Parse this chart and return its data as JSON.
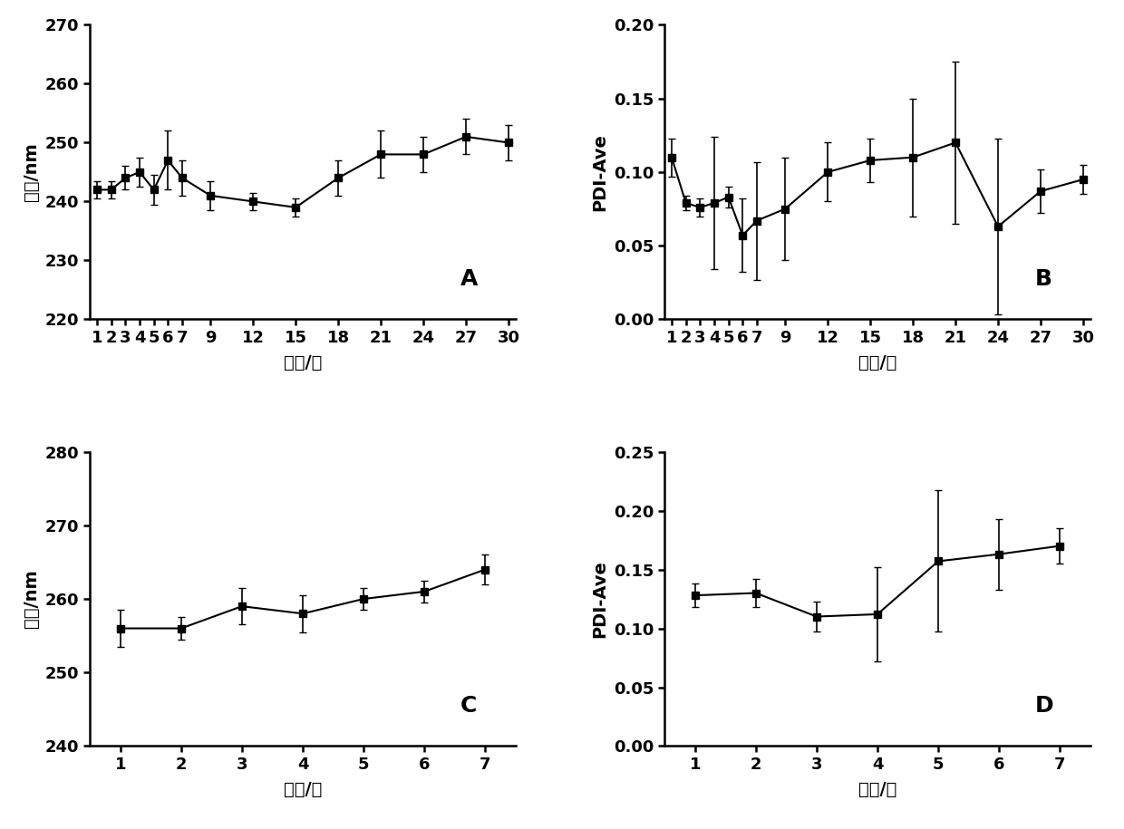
{
  "panel_A": {
    "x": [
      1,
      2,
      3,
      4,
      5,
      6,
      7,
      9,
      12,
      15,
      18,
      21,
      24,
      27,
      30
    ],
    "y": [
      242,
      242,
      244,
      245,
      242,
      247,
      244,
      241,
      240,
      239,
      244,
      248,
      248,
      251,
      250
    ],
    "yerr": [
      1.5,
      1.5,
      2,
      2.5,
      2.5,
      5,
      3,
      2.5,
      1.5,
      1.5,
      3,
      4,
      3,
      3,
      3
    ],
    "xlabel": "天数/天",
    "ylabel": "粒径/nm",
    "ylim": [
      220,
      270
    ],
    "yticks": [
      220,
      230,
      240,
      250,
      260,
      270
    ],
    "xticks": [
      1,
      2,
      3,
      4,
      5,
      6,
      7,
      9,
      12,
      15,
      18,
      21,
      24,
      27,
      30
    ],
    "label": "A"
  },
  "panel_B": {
    "x": [
      1,
      2,
      3,
      4,
      5,
      6,
      7,
      9,
      12,
      15,
      18,
      21,
      24,
      27,
      30
    ],
    "y": [
      0.11,
      0.079,
      0.076,
      0.079,
      0.083,
      0.057,
      0.067,
      0.075,
      0.1,
      0.108,
      0.11,
      0.12,
      0.063,
      0.087,
      0.095
    ],
    "yerr": [
      0.013,
      0.005,
      0.006,
      0.045,
      0.007,
      0.025,
      0.04,
      0.035,
      0.02,
      0.015,
      0.04,
      0.055,
      0.06,
      0.015,
      0.01
    ],
    "xlabel": "天数/天",
    "ylabel": "PDI-Ave",
    "ylim": [
      0.0,
      0.2
    ],
    "yticks": [
      0.0,
      0.05,
      0.1,
      0.15,
      0.2
    ],
    "ytick_labels": [
      "0.00",
      "0.05",
      "0.10",
      "0.15",
      "0.20"
    ],
    "xticks": [
      1,
      2,
      3,
      4,
      5,
      6,
      7,
      9,
      12,
      15,
      18,
      21,
      24,
      27,
      30
    ],
    "label": "B"
  },
  "panel_C": {
    "x": [
      1,
      2,
      3,
      4,
      5,
      6,
      7
    ],
    "y": [
      256,
      256,
      259,
      258,
      260,
      261,
      264
    ],
    "yerr": [
      2.5,
      1.5,
      2.5,
      2.5,
      1.5,
      1.5,
      2
    ],
    "xlabel": "天数/天",
    "ylabel": "粒径/nm",
    "ylim": [
      240,
      280
    ],
    "yticks": [
      240,
      250,
      260,
      270,
      280
    ],
    "xticks": [
      1,
      2,
      3,
      4,
      5,
      6,
      7
    ],
    "label": "C"
  },
  "panel_D": {
    "x": [
      1,
      2,
      3,
      4,
      5,
      6,
      7
    ],
    "y": [
      0.128,
      0.13,
      0.11,
      0.112,
      0.157,
      0.163,
      0.17
    ],
    "yerr": [
      0.01,
      0.012,
      0.013,
      0.04,
      0.06,
      0.03,
      0.015
    ],
    "xlabel": "天数/天",
    "ylabel": "PDI-Ave",
    "ylim": [
      0.0,
      0.25
    ],
    "yticks": [
      0.0,
      0.05,
      0.1,
      0.15,
      0.2,
      0.25
    ],
    "ytick_labels": [
      "0.00",
      "0.05",
      "0.10",
      "0.15",
      "0.20",
      "0.25"
    ],
    "xticks": [
      1,
      2,
      3,
      4,
      5,
      6,
      7
    ],
    "label": "D"
  },
  "line_color": "#000000",
  "marker": "s",
  "markersize": 6,
  "linewidth": 1.5,
  "capsize": 3,
  "elinewidth": 1.2,
  "tick_fontsize": 13,
  "axis_label_fontsize": 14,
  "panel_label_fontsize": 18
}
